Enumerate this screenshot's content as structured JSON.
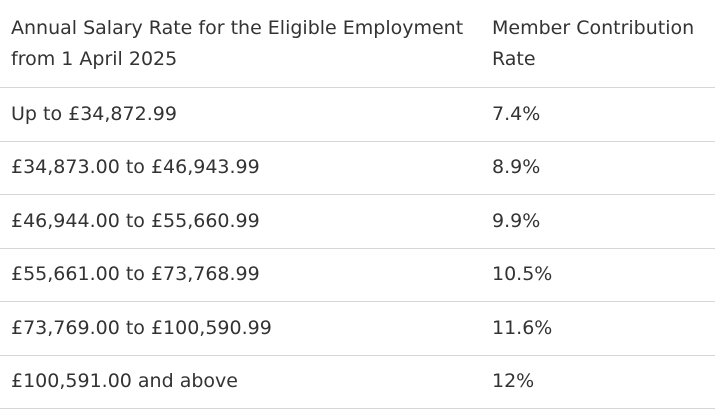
{
  "table": {
    "headers": [
      "Annual Salary Rate for the Eligible Employment from 1 April 2025",
      "Member Contribution Rate"
    ],
    "rows": [
      {
        "salary": "Up to £34,872.99",
        "rate": "7.4%"
      },
      {
        "salary": "£34,873.00 to £46,943.99",
        "rate": "8.9%"
      },
      {
        "salary": "£46,944.00 to £55,660.99",
        "rate": "9.9%"
      },
      {
        "salary": "£55,661.00 to £73,768.99",
        "rate": "10.5%"
      },
      {
        "salary": "£73,769.00 to £100,590.99",
        "rate": "11.6%"
      },
      {
        "salary": "£100,591.00 and above",
        "rate": "12%"
      }
    ]
  }
}
